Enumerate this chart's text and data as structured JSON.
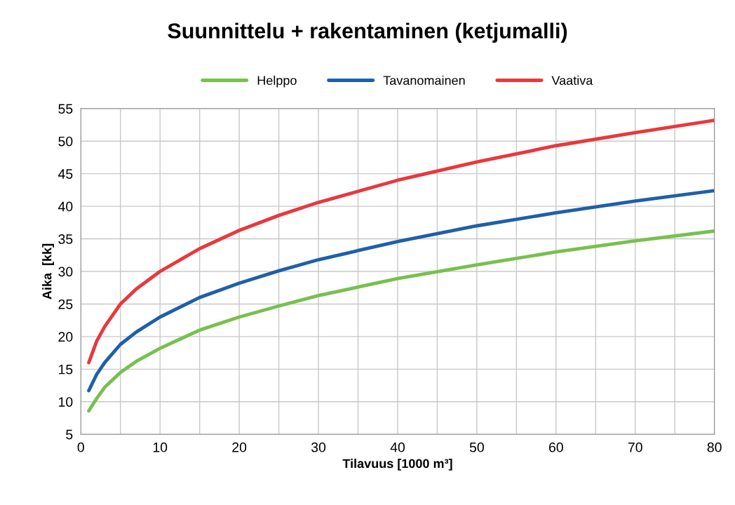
{
  "chart_data": {
    "type": "line",
    "title": "Suunnittelu + rakentaminen (ketjumalli)",
    "xlabel": "Tilavuus [1000 m³]",
    "ylabel": "Aika  [kk]",
    "x": [
      1,
      2,
      3,
      5,
      7,
      10,
      15,
      20,
      25,
      30,
      40,
      50,
      60,
      70,
      80
    ],
    "series": [
      {
        "name": "Helppo",
        "color": "#77c04d",
        "values": [
          8.6,
          10.5,
          12.2,
          14.5,
          16.2,
          18.2,
          21,
          23,
          24.7,
          26.3,
          28.9,
          31,
          33,
          34.7,
          36.2
        ]
      },
      {
        "name": "Tavanomainen",
        "color": "#1f5fa8",
        "values": [
          11.7,
          14.2,
          16,
          18.8,
          20.7,
          23,
          26,
          28.2,
          30.1,
          31.8,
          34.6,
          37,
          39,
          40.8,
          42.4
        ]
      },
      {
        "name": "Vaativa",
        "color": "#e8383d",
        "values": [
          16,
          19.3,
          21.5,
          25,
          27.3,
          30,
          33.5,
          36.3,
          38.6,
          40.6,
          44,
          46.8,
          49.3,
          51.3,
          53.2
        ]
      }
    ],
    "xlim": [
      0,
      80
    ],
    "ylim": [
      5,
      55
    ],
    "xticks": [
      0,
      {
        "value": 5,
        "label": null
      },
      10,
      {
        "value": 15,
        "label": null
      },
      20,
      {
        "value": 25,
        "label": null
      },
      30,
      {
        "value": 35,
        "label": null
      },
      40,
      {
        "value": 45,
        "label": null
      },
      50,
      {
        "value": 55,
        "label": null
      },
      60,
      {
        "value": 65,
        "label": null
      },
      70,
      {
        "value": 75,
        "label": null
      },
      80
    ],
    "yticks": [
      5,
      10,
      15,
      20,
      25,
      30,
      35,
      40,
      45,
      50,
      55
    ],
    "grid": true,
    "legend": "top",
    "marker": "none",
    "line_style": "solid"
  }
}
